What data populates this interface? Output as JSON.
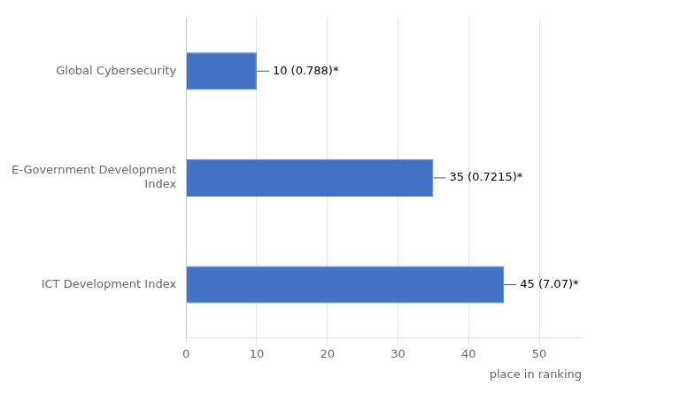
{
  "chart_data": {
    "type": "bar",
    "orientation": "horizontal",
    "categories": [
      "ICT Development Index",
      "E-Government Development\nIndex",
      "Global Cybersecurity"
    ],
    "values": [
      45,
      35,
      10
    ],
    "data_labels": true,
    "value_labels": [
      "45 (7.07)*",
      "35 (0.7215)*",
      "10 (0.788)*"
    ],
    "color": "#4472C4",
    "x_label": "place in ranking",
    "xlim": [
      0,
      56
    ],
    "xticks": [
      0,
      10,
      20,
      30,
      40,
      50
    ],
    "grid": true
  }
}
